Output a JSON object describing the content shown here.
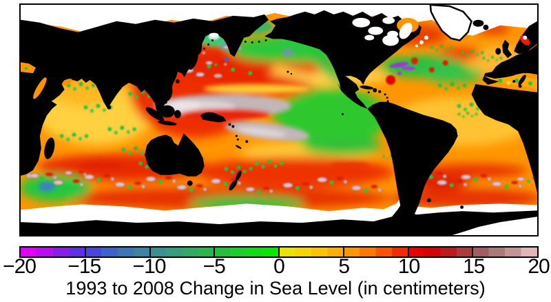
{
  "title": {
    "text": "1993 to 2008 Change in Sea Level (in centimeters)"
  },
  "map": {
    "description": "Pacific-centered world map of satellite-measured sea level change 1993-2008; land solid black, polar no-data regions white",
    "land_color": "#000000",
    "no_data_color": "#ffffff",
    "frame_color": "#000000",
    "ocean_base_color": "#ff9600"
  },
  "colorbar": {
    "min": -20,
    "max": 20,
    "units": "cm",
    "tick_values": [
      -20,
      -15,
      -10,
      -5,
      0,
      5,
      10,
      15,
      20
    ],
    "tick_labels": [
      "−20",
      "−15",
      "−10",
      "−5",
      "0",
      "5",
      "10",
      "15",
      "20"
    ],
    "border_color": "#000000",
    "step_colors": [
      "#e000fa",
      "#b80ef4",
      "#8c1cee",
      "#5c30e6",
      "#4846dc",
      "#4060cc",
      "#3e74b8",
      "#3d84a4",
      "#3a9290",
      "#359e7c",
      "#30aa64",
      "#2bb54e",
      "#25c03a",
      "#1cce28",
      "#10dc14",
      "#02ea02",
      "#e8e400",
      "#f6d400",
      "#ffc200",
      "#ffae00",
      "#ff9600",
      "#ff7800",
      "#ff5200",
      "#f62a00",
      "#e80000",
      "#d40404",
      "#bc1c1c",
      "#ac3c3c",
      "#a25e5e",
      "#ac7878",
      "#c49494",
      "#e2b6b6"
    ]
  },
  "chart_data": {
    "type": "heatmap",
    "title": "1993 to 2008 Change in Sea Level (in centimeters)",
    "units": "cm",
    "scale": {
      "min": -20,
      "max": 20,
      "ticks": [
        -20,
        -15,
        -10,
        -5,
        0,
        5,
        10,
        15,
        20
      ]
    },
    "regions": [
      {
        "region": "Western tropical Pacific warm pool (two zonal gray-white lobes)",
        "approx_change_cm": 20
      },
      {
        "region": "Eastern equatorial Pacific tongue",
        "approx_change_cm": -2
      },
      {
        "region": "Gulf of Alaska / NE Pacific subarctic",
        "approx_change_cm": -2
      },
      {
        "region": "Kuroshio extension (eddy-rich mottling)",
        "approx_change_cm": 8
      },
      {
        "region": "Central North Pacific band",
        "approx_change_cm": 9
      },
      {
        "region": "Gulf Stream / NW Atlantic (mottled, local strong falls)",
        "approx_change_cm": -5
      },
      {
        "region": "North Atlantic subpolar patch",
        "approx_change_cm": 9
      },
      {
        "region": "Tropical Atlantic",
        "approx_change_cm": 4
      },
      {
        "region": "Indian Ocean interior",
        "approx_change_cm": 4
      },
      {
        "region": "Southern Ocean circumpolar band (eddy-rich)",
        "approx_change_cm": 10
      },
      {
        "region": "Agulhas retroflection patch",
        "approx_change_cm": -3
      },
      {
        "region": "Brazil-Malvinas confluence eddies",
        "approx_change_cm": 15
      },
      {
        "region": "Mediterranean Sea",
        "approx_change_cm": 4
      },
      {
        "region": "Arctic and Antarctic polar seas",
        "approx_change_cm": null
      }
    ]
  }
}
